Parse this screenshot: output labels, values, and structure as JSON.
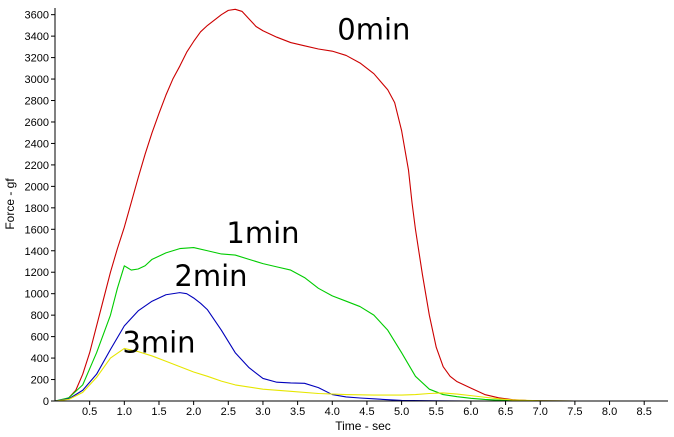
{
  "chart_data": {
    "type": "line",
    "title": "",
    "xlabel": "Time - sec",
    "ylabel": "Force - gf",
    "xlim": [
      0,
      8.8
    ],
    "ylim": [
      0,
      3650
    ],
    "xticks": [
      0.5,
      1.0,
      1.5,
      2.0,
      2.5,
      3.0,
      3.5,
      4.0,
      4.5,
      5.0,
      5.5,
      6.0,
      6.5,
      7.0,
      7.5,
      8.0,
      8.5
    ],
    "xtick_labels": [
      "0.5",
      "1.0",
      "1.5",
      "2.0",
      "2.5",
      "3.0",
      "3.5",
      "4.0",
      "4.5",
      "5.0",
      "5.5",
      "6.0",
      "6.5",
      "7.0",
      "7.5",
      "8.0",
      "8.5"
    ],
    "yticks": [
      0,
      200,
      400,
      600,
      800,
      1000,
      1200,
      1400,
      1600,
      1800,
      2000,
      2200,
      2400,
      2600,
      2800,
      3000,
      3200,
      3400,
      3600
    ],
    "ytick_labels": [
      "0",
      "200",
      "400",
      "600",
      "800",
      "1000",
      "1200",
      "1400",
      "1600",
      "1800",
      "2000",
      "2200",
      "2400",
      "2600",
      "2800",
      "3000",
      "3200",
      "3400",
      "3600"
    ],
    "grid": false,
    "legend": "none",
    "series": [
      {
        "color": "#cc0000",
        "x": [
          0,
          0.1,
          0.2,
          0.3,
          0.4,
          0.5,
          0.6,
          0.7,
          0.8,
          0.9,
          1.0,
          1.1,
          1.2,
          1.3,
          1.4,
          1.5,
          1.6,
          1.7,
          1.8,
          1.9,
          2.0,
          2.1,
          2.2,
          2.4,
          2.5,
          2.6,
          2.7,
          2.8,
          2.9,
          3.0,
          3.2,
          3.4,
          3.6,
          3.8,
          4.0,
          4.2,
          4.4,
          4.6,
          4.8,
          4.9,
          5.0,
          5.1,
          5.15,
          5.2,
          5.3,
          5.4,
          5.5,
          5.6,
          5.7,
          5.8,
          5.9,
          6.0,
          6.2,
          6.4,
          6.6,
          6.8,
          7.0,
          7.5,
          8.0,
          8.8
        ],
        "y": [
          0,
          5,
          30,
          100,
          250,
          450,
          700,
          950,
          1200,
          1420,
          1620,
          1850,
          2080,
          2300,
          2500,
          2680,
          2850,
          3000,
          3120,
          3250,
          3350,
          3440,
          3500,
          3600,
          3640,
          3650,
          3630,
          3560,
          3490,
          3450,
          3390,
          3340,
          3310,
          3280,
          3260,
          3220,
          3150,
          3050,
          2900,
          2780,
          2520,
          2150,
          1850,
          1600,
          1180,
          800,
          500,
          320,
          230,
          180,
          150,
          120,
          60,
          30,
          12,
          5,
          2,
          0,
          0,
          0
        ]
      },
      {
        "color": "#00cc00",
        "x": [
          0,
          0.2,
          0.4,
          0.6,
          0.8,
          0.9,
          1.0,
          1.1,
          1.2,
          1.3,
          1.4,
          1.6,
          1.8,
          2.0,
          2.2,
          2.4,
          2.6,
          2.8,
          3.0,
          3.2,
          3.4,
          3.6,
          3.8,
          4.0,
          4.2,
          4.4,
          4.6,
          4.8,
          5.0,
          5.2,
          5.4,
          5.6,
          5.8,
          6.0,
          6.2,
          6.4,
          6.6,
          7.0,
          7.5,
          8.8
        ],
        "y": [
          0,
          30,
          150,
          450,
          800,
          1050,
          1260,
          1220,
          1230,
          1260,
          1320,
          1380,
          1420,
          1430,
          1400,
          1370,
          1360,
          1320,
          1280,
          1250,
          1220,
          1150,
          1050,
          980,
          930,
          880,
          800,
          660,
          450,
          230,
          110,
          60,
          40,
          25,
          15,
          8,
          3,
          1,
          0,
          0
        ]
      },
      {
        "color": "#0000bb",
        "x": [
          0,
          0.2,
          0.4,
          0.6,
          0.8,
          1.0,
          1.2,
          1.4,
          1.6,
          1.8,
          1.9,
          2.0,
          2.1,
          2.2,
          2.4,
          2.6,
          2.8,
          3.0,
          3.2,
          3.4,
          3.6,
          3.8,
          4.0,
          4.2,
          4.4,
          4.6,
          4.8,
          5.0,
          5.5,
          6.0,
          6.5,
          7.0,
          7.5,
          8.8
        ],
        "y": [
          0,
          20,
          100,
          250,
          480,
          700,
          840,
          930,
          990,
          1010,
          1000,
          960,
          910,
          850,
          660,
          450,
          310,
          210,
          175,
          168,
          165,
          125,
          60,
          38,
          28,
          20,
          12,
          5,
          2,
          0,
          0,
          0,
          0,
          0
        ]
      },
      {
        "color": "#e6e600",
        "x": [
          0,
          0.2,
          0.4,
          0.6,
          0.8,
          1.0,
          1.2,
          1.4,
          1.6,
          1.8,
          2.0,
          2.2,
          2.4,
          2.6,
          2.8,
          3.0,
          3.4,
          3.8,
          4.2,
          4.6,
          5.0,
          5.2,
          5.4,
          5.6,
          5.8,
          6.0,
          6.2,
          6.4,
          6.6,
          7.0,
          7.5,
          8.8
        ],
        "y": [
          0,
          15,
          80,
          220,
          400,
          490,
          460,
          420,
          370,
          320,
          270,
          230,
          185,
          150,
          130,
          110,
          90,
          70,
          60,
          55,
          55,
          60,
          70,
          75,
          65,
          50,
          35,
          20,
          10,
          2,
          0,
          0
        ]
      }
    ],
    "annotations": [
      {
        "text": "0min",
        "x": 4.6,
        "y": 3370
      },
      {
        "text": "1min",
        "x": 3.0,
        "y": 1470
      },
      {
        "text": "2min",
        "x": 2.25,
        "y": 1070
      },
      {
        "text": "3min",
        "x": 1.5,
        "y": 450
      }
    ]
  }
}
